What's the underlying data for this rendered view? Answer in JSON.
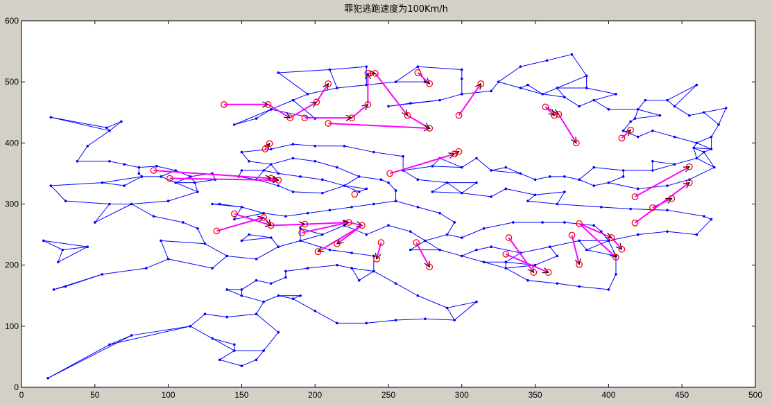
{
  "chart_data": {
    "type": "scatter",
    "title": "罪犯逃跑速度为100Km/h",
    "xlabel": "",
    "ylabel": "",
    "xlim": [
      0,
      500
    ],
    "ylim": [
      0,
      600
    ],
    "x_ticks": [
      0,
      50,
      100,
      150,
      200,
      250,
      300,
      350,
      400,
      450,
      500
    ],
    "y_ticks": [
      0,
      100,
      200,
      300,
      400,
      500,
      600
    ],
    "grid": false,
    "colors": {
      "figure_background": "#d4d0c8",
      "axes_background": "#ffffff",
      "network": "#0000ff",
      "pursuit": "#ff00ff",
      "nodes_circle": "#ff0000",
      "arrows": "#000000"
    },
    "network_nodes": [
      [
        20,
        442
      ],
      [
        20,
        330
      ],
      [
        15,
        240
      ],
      [
        25,
        205
      ],
      [
        22,
        160
      ],
      [
        18,
        15
      ],
      [
        28,
        225
      ],
      [
        30,
        305
      ],
      [
        38,
        370
      ],
      [
        45,
        395
      ],
      [
        60,
        420
      ],
      [
        58,
        425
      ],
      [
        60,
        370
      ],
      [
        68,
        435
      ],
      [
        80,
        360
      ],
      [
        70,
        330
      ],
      [
        55,
        335
      ],
      [
        60,
        300
      ],
      [
        50,
        270
      ],
      [
        45,
        230
      ],
      [
        55,
        185
      ],
      [
        30,
        165
      ],
      [
        60,
        70
      ],
      [
        75,
        85
      ],
      [
        135,
        45
      ],
      [
        145,
        60
      ],
      [
        100,
        305
      ],
      [
        95,
        240
      ],
      [
        100,
        210
      ],
      [
        85,
        195
      ],
      [
        120,
        260
      ],
      [
        130,
        195
      ],
      [
        130,
        300
      ],
      [
        145,
        275
      ],
      [
        155,
        250
      ],
      [
        150,
        160
      ],
      [
        160,
        120
      ],
      [
        140,
        160
      ],
      [
        200,
        440
      ],
      [
        175,
        515
      ],
      [
        210,
        520
      ],
      [
        235,
        525
      ],
      [
        270,
        525
      ],
      [
        300,
        520
      ],
      [
        340,
        525
      ],
      [
        358,
        535
      ],
      [
        375,
        545
      ],
      [
        385,
        510
      ],
      [
        380,
        460
      ],
      [
        420,
        455
      ],
      [
        440,
        470
      ],
      [
        460,
        495
      ],
      [
        480,
        457
      ],
      [
        455,
        445
      ],
      [
        435,
        445
      ],
      [
        418,
        440
      ],
      [
        410,
        420
      ],
      [
        420,
        410
      ],
      [
        458,
        392
      ],
      [
        465,
        385
      ],
      [
        430,
        370
      ],
      [
        410,
        355
      ],
      [
        390,
        360
      ],
      [
        370,
        345
      ],
      [
        350,
        340
      ],
      [
        330,
        360
      ],
      [
        310,
        375
      ],
      [
        285,
        375
      ],
      [
        260,
        378
      ],
      [
        240,
        385
      ],
      [
        220,
        395
      ],
      [
        200,
        395
      ],
      [
        185,
        398
      ],
      [
        170,
        390
      ],
      [
        150,
        385
      ],
      [
        155,
        370
      ],
      [
        160,
        340
      ],
      [
        175,
        330
      ],
      [
        185,
        320
      ],
      [
        205,
        318
      ],
      [
        230,
        320
      ],
      [
        255,
        322
      ],
      [
        280,
        320
      ],
      [
        300,
        318
      ],
      [
        320,
        312
      ],
      [
        345,
        305
      ],
      [
        365,
        300
      ],
      [
        395,
        295
      ],
      [
        415,
        292
      ],
      [
        440,
        290
      ],
      [
        465,
        280
      ],
      [
        470,
        275
      ],
      [
        460,
        250
      ],
      [
        440,
        255
      ],
      [
        420,
        250
      ],
      [
        405,
        215
      ],
      [
        405,
        185
      ],
      [
        400,
        160
      ],
      [
        380,
        165
      ],
      [
        365,
        170
      ],
      [
        345,
        175
      ],
      [
        330,
        195
      ],
      [
        315,
        205
      ],
      [
        300,
        215
      ],
      [
        285,
        225
      ],
      [
        265,
        225
      ],
      [
        240,
        215
      ],
      [
        225,
        220
      ],
      [
        210,
        225
      ],
      [
        190,
        240
      ],
      [
        175,
        230
      ],
      [
        160,
        210
      ],
      [
        170,
        170
      ],
      [
        180,
        180
      ],
      [
        190,
        150
      ],
      [
        200,
        125
      ],
      [
        215,
        105
      ],
      [
        235,
        105
      ],
      [
        255,
        110
      ],
      [
        275,
        112
      ],
      [
        295,
        110
      ],
      [
        310,
        140
      ],
      [
        290,
        130
      ],
      [
        270,
        150
      ],
      [
        255,
        170
      ],
      [
        240,
        190
      ],
      [
        230,
        175
      ],
      [
        225,
        195
      ],
      [
        215,
        200
      ],
      [
        195,
        195
      ],
      [
        180,
        190
      ],
      [
        160,
        175
      ],
      [
        150,
        150
      ],
      [
        140,
        115
      ],
      [
        125,
        120
      ],
      [
        115,
        100
      ],
      [
        130,
        80
      ],
      [
        145,
        70
      ],
      [
        150,
        35
      ],
      [
        160,
        45
      ],
      [
        165,
        60
      ],
      [
        175,
        90
      ],
      [
        165,
        140
      ],
      [
        175,
        150
      ],
      [
        185,
        145
      ],
      [
        300,
        245
      ],
      [
        315,
        260
      ],
      [
        335,
        270
      ],
      [
        355,
        270
      ],
      [
        370,
        270
      ],
      [
        390,
        265
      ],
      [
        395,
        255
      ],
      [
        380,
        240
      ],
      [
        360,
        230
      ],
      [
        340,
        220
      ],
      [
        320,
        230
      ],
      [
        310,
        225
      ],
      [
        330,
        205
      ],
      [
        350,
        200
      ],
      [
        365,
        215
      ],
      [
        385,
        225
      ],
      [
        400,
        240
      ],
      [
        250,
        460
      ],
      [
        265,
        465
      ],
      [
        285,
        470
      ],
      [
        300,
        480
      ],
      [
        320,
        485
      ],
      [
        340,
        490
      ],
      [
        355,
        480
      ],
      [
        370,
        475
      ],
      [
        390,
        470
      ],
      [
        400,
        455
      ],
      [
        415,
        435
      ],
      [
        430,
        420
      ],
      [
        445,
        410
      ],
      [
        460,
        400
      ],
      [
        470,
        390
      ],
      [
        472,
        360
      ],
      [
        455,
        340
      ],
      [
        440,
        330
      ],
      [
        420,
        325
      ],
      [
        400,
        335
      ],
      [
        380,
        340
      ],
      [
        360,
        345
      ],
      [
        340,
        350
      ],
      [
        320,
        355
      ],
      [
        300,
        360
      ],
      [
        280,
        362
      ],
      [
        260,
        355
      ],
      [
        245,
        340
      ],
      [
        230,
        345
      ],
      [
        215,
        360
      ],
      [
        200,
        370
      ],
      [
        185,
        375
      ],
      [
        170,
        365
      ],
      [
        150,
        355
      ],
      [
        130,
        350
      ],
      [
        115,
        345
      ],
      [
        95,
        345
      ],
      [
        80,
        350
      ],
      [
        70,
        365
      ],
      [
        75,
        300
      ],
      [
        90,
        280
      ],
      [
        110,
        270
      ],
      [
        125,
        235
      ],
      [
        140,
        215
      ],
      [
        150,
        240
      ],
      [
        170,
        245
      ],
      [
        190,
        260
      ],
      [
        205,
        250
      ],
      [
        220,
        265
      ],
      [
        235,
        250
      ],
      [
        250,
        265
      ],
      [
        265,
        255
      ],
      [
        275,
        240
      ],
      [
        290,
        250
      ],
      [
        295,
        270
      ],
      [
        285,
        285
      ],
      [
        270,
        295
      ],
      [
        255,
        305
      ],
      [
        240,
        300
      ],
      [
        225,
        295
      ],
      [
        210,
        290
      ],
      [
        195,
        285
      ],
      [
        180,
        280
      ],
      [
        165,
        285
      ],
      [
        150,
        295
      ],
      [
        135,
        300
      ],
      [
        120,
        320
      ],
      [
        105,
        335
      ],
      [
        145,
        430
      ],
      [
        160,
        440
      ],
      [
        170,
        455
      ],
      [
        185,
        470
      ],
      [
        195,
        480
      ],
      [
        215,
        490
      ],
      [
        235,
        495
      ],
      [
        255,
        500
      ],
      [
        275,
        500
      ],
      [
        300,
        505
      ],
      [
        325,
        500
      ],
      [
        345,
        495
      ],
      [
        365,
        490
      ],
      [
        385,
        490
      ],
      [
        405,
        480
      ],
      [
        425,
        470
      ],
      [
        445,
        460
      ],
      [
        465,
        450
      ],
      [
        475,
        430
      ],
      [
        470,
        410
      ],
      [
        460,
        375
      ],
      [
        445,
        365
      ],
      [
        430,
        355
      ],
      [
        410,
        345
      ],
      [
        390,
        330
      ],
      [
        370,
        320
      ],
      [
        350,
        315
      ],
      [
        330,
        325
      ],
      [
        310,
        335
      ],
      [
        290,
        335
      ],
      [
        270,
        340
      ],
      [
        250,
        335
      ],
      [
        235,
        325
      ],
      [
        220,
        330
      ],
      [
        205,
        340
      ],
      [
        190,
        345
      ],
      [
        175,
        350
      ],
      [
        165,
        355
      ],
      [
        148,
        345
      ],
      [
        132,
        340
      ],
      [
        118,
        335
      ],
      [
        105,
        355
      ],
      [
        92,
        362
      ],
      [
        82,
        345
      ]
    ],
    "pursuit_lines": [
      [
        [
          138,
          463
        ],
        [
          168,
          463
        ]
      ],
      [
        [
          168,
          463
        ],
        [
          183,
          441
        ]
      ],
      [
        [
          183,
          441
        ],
        [
          201,
          467
        ]
      ],
      [
        [
          201,
          467
        ],
        [
          209,
          497
        ]
      ],
      [
        [
          193,
          441
        ],
        [
          225,
          441
        ]
      ],
      [
        [
          225,
          441
        ],
        [
          236,
          463
        ]
      ],
      [
        [
          236,
          463
        ],
        [
          236,
          514
        ]
      ],
      [
        [
          236,
          514
        ],
        [
          241,
          514
        ]
      ],
      [
        [
          241,
          514
        ],
        [
          263,
          445
        ]
      ],
      [
        [
          263,
          445
        ],
        [
          278,
          424
        ]
      ],
      [
        [
          209,
          432
        ],
        [
          278,
          424
        ]
      ],
      [
        [
          270,
          515
        ],
        [
          278,
          497
        ]
      ],
      [
        [
          298,
          445
        ],
        [
          313,
          497
        ]
      ],
      [
        [
          357,
          459
        ],
        [
          366,
          447
        ]
      ],
      [
        [
          366,
          447
        ],
        [
          378,
          400
        ]
      ],
      [
        [
          357,
          459
        ],
        [
          363,
          445
        ]
      ],
      [
        [
          409,
          408
        ],
        [
          415,
          421
        ]
      ],
      [
        [
          90,
          355
        ],
        [
          170,
          342
        ]
      ],
      [
        [
          170,
          342
        ],
        [
          175,
          339
        ]
      ],
      [
        [
          101,
          342
        ],
        [
          175,
          339
        ]
      ],
      [
        [
          166,
          390
        ],
        [
          169,
          399
        ]
      ],
      [
        [
          251,
          350
        ],
        [
          295,
          382
        ]
      ],
      [
        [
          295,
          382
        ],
        [
          298,
          386
        ]
      ],
      [
        [
          133,
          256
        ],
        [
          165,
          278
        ]
      ],
      [
        [
          165,
          278
        ],
        [
          170,
          265
        ]
      ],
      [
        [
          145,
          284
        ],
        [
          170,
          265
        ]
      ],
      [
        [
          170,
          265
        ],
        [
          193,
          267
        ]
      ],
      [
        [
          193,
          267
        ],
        [
          223,
          270
        ]
      ],
      [
        [
          191,
          253
        ],
        [
          223,
          270
        ]
      ],
      [
        [
          223,
          270
        ],
        [
          232,
          265
        ]
      ],
      [
        [
          232,
          265
        ],
        [
          215,
          235
        ]
      ],
      [
        [
          232,
          265
        ],
        [
          202,
          222
        ]
      ],
      [
        [
          245,
          237
        ],
        [
          242,
          210
        ]
      ],
      [
        [
          269,
          237
        ],
        [
          278,
          197
        ]
      ],
      [
        [
          332,
          245
        ],
        [
          349,
          188
        ]
      ],
      [
        [
          330,
          218
        ],
        [
          359,
          188
        ]
      ],
      [
        [
          380,
          268
        ],
        [
          402,
          245
        ]
      ],
      [
        [
          402,
          245
        ],
        [
          409,
          226
        ]
      ],
      [
        [
          380,
          268
        ],
        [
          405,
          213
        ]
      ],
      [
        [
          375,
          249
        ],
        [
          380,
          201
        ]
      ],
      [
        [
          418,
          312
        ],
        [
          455,
          361
        ]
      ],
      [
        [
          418,
          269
        ],
        [
          455,
          335
        ]
      ],
      [
        [
          430,
          294
        ],
        [
          443,
          309
        ]
      ]
    ],
    "pursuit_nodes": [
      [
        138,
        463
      ],
      [
        168,
        463
      ],
      [
        183,
        441
      ],
      [
        193,
        441
      ],
      [
        201,
        467
      ],
      [
        209,
        497
      ],
      [
        225,
        441
      ],
      [
        236,
        463
      ],
      [
        236,
        514
      ],
      [
        241,
        514
      ],
      [
        263,
        445
      ],
      [
        270,
        515
      ],
      [
        278,
        497
      ],
      [
        278,
        424
      ],
      [
        209,
        432
      ],
      [
        298,
        445
      ],
      [
        313,
        497
      ],
      [
        357,
        459
      ],
      [
        363,
        445
      ],
      [
        366,
        447
      ],
      [
        378,
        400
      ],
      [
        409,
        408
      ],
      [
        415,
        421
      ],
      [
        90,
        355
      ],
      [
        101,
        342
      ],
      [
        170,
        342
      ],
      [
        175,
        339
      ],
      [
        166,
        390
      ],
      [
        169,
        399
      ],
      [
        251,
        350
      ],
      [
        295,
        382
      ],
      [
        298,
        386
      ],
      [
        227,
        316
      ],
      [
        133,
        256
      ],
      [
        145,
        284
      ],
      [
        165,
        278
      ],
      [
        170,
        265
      ],
      [
        191,
        253
      ],
      [
        193,
        267
      ],
      [
        202,
        222
      ],
      [
        215,
        235
      ],
      [
        223,
        270
      ],
      [
        232,
        265
      ],
      [
        242,
        210
      ],
      [
        245,
        237
      ],
      [
        269,
        237
      ],
      [
        278,
        197
      ],
      [
        332,
        245
      ],
      [
        330,
        218
      ],
      [
        349,
        188
      ],
      [
        359,
        188
      ],
      [
        375,
        249
      ],
      [
        380,
        268
      ],
      [
        380,
        201
      ],
      [
        402,
        245
      ],
      [
        409,
        226
      ],
      [
        405,
        213
      ],
      [
        418,
        312
      ],
      [
        455,
        361
      ],
      [
        418,
        269
      ],
      [
        430,
        294
      ],
      [
        443,
        309
      ],
      [
        455,
        335
      ]
    ]
  }
}
